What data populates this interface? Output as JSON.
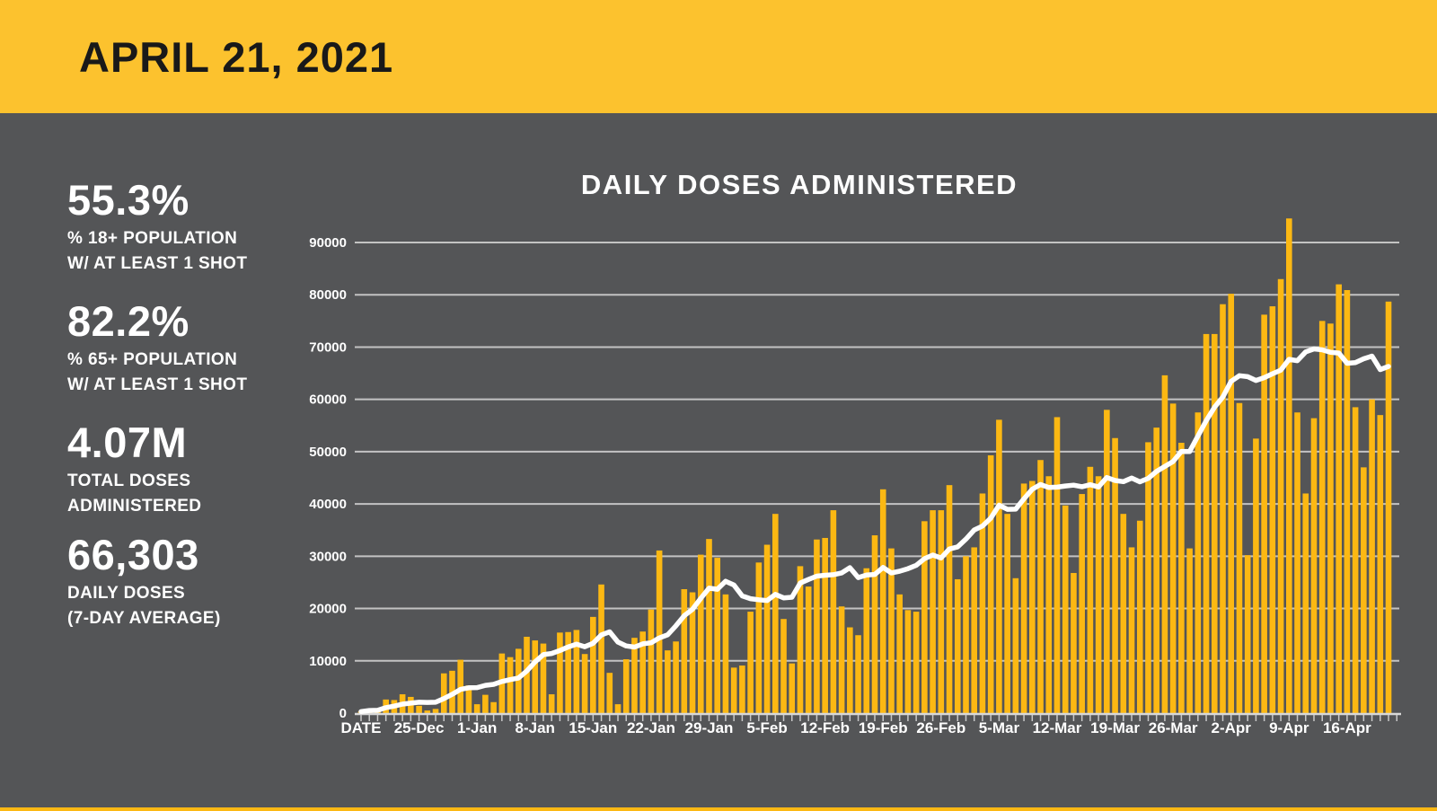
{
  "header": {
    "title": "APRIL 21, 2021"
  },
  "stats": [
    {
      "value": "55.3%",
      "label_line1": "% 18+ POPULATION",
      "label_line2": "W/ AT LEAST 1 SHOT"
    },
    {
      "value": "82.2%",
      "label_line1": "% 65+ POPULATION",
      "label_line2": "W/ AT LEAST 1 SHOT"
    },
    {
      "value": "4.07M",
      "label_line1": "TOTAL DOSES",
      "label_line2": "ADMINISTERED"
    },
    {
      "value": "66,303",
      "label_line1": "DAILY DOSES",
      "label_line2": "(7-DAY AVERAGE)"
    }
  ],
  "colors": {
    "background": "#545557",
    "header_yellow": "#FCC22E",
    "bar_yellow": "#FCB813",
    "text_white": "#FFFFFF",
    "header_text": "#191919",
    "gridline": "#C3C3C3",
    "axis_line": "#D8D8D8",
    "tick": "#C8C8C8",
    "avg_line": "#FFFFFF"
  },
  "chart_data": {
    "type": "bar",
    "title": "DAILY DOSES ADMINISTERED",
    "xlabel": "",
    "ylabel": "",
    "x_axis_first_label": "DATE",
    "x_tick_labels": [
      "25-Dec",
      "1-Jan",
      "8-Jan",
      "15-Jan",
      "22-Jan",
      "29-Jan",
      "5-Feb",
      "12-Feb",
      "19-Feb",
      "26-Feb",
      "5-Mar",
      "12-Mar",
      "19-Mar",
      "26-Mar",
      "2-Apr",
      "9-Apr",
      "16-Apr"
    ],
    "x_tick_label_every_n_bars": 7,
    "x_tick_label_start_index": 7,
    "y_ticks": [
      0,
      10000,
      20000,
      30000,
      40000,
      50000,
      60000,
      70000,
      80000,
      90000
    ],
    "ylim": [
      0,
      97000
    ],
    "grid": "horizontal",
    "legend": "none",
    "series": [
      {
        "name": "Daily doses administered",
        "type": "bar"
      },
      {
        "name": "7-day average",
        "type": "line",
        "derived": "trailing-7-day-mean",
        "end_value_shown_in_stats": "66,303"
      }
    ],
    "dates": [
      "18-Dec",
      "19-Dec",
      "20-Dec",
      "21-Dec",
      "22-Dec",
      "23-Dec",
      "24-Dec",
      "25-Dec",
      "26-Dec",
      "27-Dec",
      "28-Dec",
      "29-Dec",
      "30-Dec",
      "31-Dec",
      "1-Jan",
      "2-Jan",
      "3-Jan",
      "4-Jan",
      "5-Jan",
      "6-Jan",
      "7-Jan",
      "8-Jan",
      "9-Jan",
      "10-Jan",
      "11-Jan",
      "12-Jan",
      "13-Jan",
      "14-Jan",
      "15-Jan",
      "16-Jan",
      "17-Jan",
      "18-Jan",
      "19-Jan",
      "20-Jan",
      "21-Jan",
      "22-Jan",
      "23-Jan",
      "24-Jan",
      "25-Jan",
      "26-Jan",
      "27-Jan",
      "28-Jan",
      "29-Jan",
      "30-Jan",
      "31-Jan",
      "1-Feb",
      "2-Feb",
      "3-Feb",
      "4-Feb",
      "5-Feb",
      "6-Feb",
      "7-Feb",
      "8-Feb",
      "9-Feb",
      "10-Feb",
      "11-Feb",
      "12-Feb",
      "13-Feb",
      "14-Feb",
      "15-Feb",
      "16-Feb",
      "17-Feb",
      "18-Feb",
      "19-Feb",
      "20-Feb",
      "21-Feb",
      "22-Feb",
      "23-Feb",
      "24-Feb",
      "25-Feb",
      "26-Feb",
      "27-Feb",
      "28-Feb",
      "1-Mar",
      "2-Mar",
      "3-Mar",
      "4-Mar",
      "5-Mar",
      "6-Mar",
      "7-Mar",
      "8-Mar",
      "9-Mar",
      "10-Mar",
      "11-Mar",
      "12-Mar",
      "13-Mar",
      "14-Mar",
      "15-Mar",
      "16-Mar",
      "17-Mar",
      "18-Mar",
      "19-Mar",
      "20-Mar",
      "21-Mar",
      "22-Mar",
      "23-Mar",
      "24-Mar",
      "25-Mar",
      "26-Mar",
      "27-Mar",
      "28-Mar",
      "29-Mar",
      "30-Mar",
      "31-Mar",
      "1-Apr",
      "2-Apr",
      "3-Apr",
      "4-Apr",
      "5-Apr",
      "6-Apr",
      "7-Apr",
      "8-Apr",
      "9-Apr",
      "10-Apr",
      "11-Apr",
      "12-Apr",
      "13-Apr",
      "14-Apr",
      "15-Apr",
      "16-Apr",
      "17-Apr",
      "18-Apr",
      "19-Apr",
      "20-Apr",
      "21-Apr"
    ],
    "values": [
      300,
      700,
      600,
      2600,
      2500,
      3600,
      3100,
      1400,
      500,
      800,
      7600,
      8100,
      10200,
      5300,
      1700,
      3500,
      2100,
      11400,
      10700,
      12300,
      14600,
      13900,
      13300,
      3600,
      15400,
      15500,
      15900,
      11300,
      18400,
      24600,
      7700,
      1700,
      10300,
      14400,
      15600,
      19800,
      31100,
      12000,
      13700,
      23700,
      23100,
      30300,
      33300,
      29700,
      22700,
      8700,
      9100,
      19400,
      28800,
      32200,
      38100,
      18000,
      9500,
      28100,
      24200,
      33200,
      33500,
      38800,
      20400,
      16400,
      14900,
      27700,
      34000,
      42800,
      31500,
      22700,
      19700,
      19400,
      36700,
      38800,
      38800,
      43600,
      25600,
      30000,
      31700,
      42000,
      49300,
      56100,
      38100,
      25800,
      43900,
      44400,
      48400,
      45300,
      56600,
      39700,
      26800,
      41900,
      47100,
      45300,
      58000,
      52600,
      38100,
      31700,
      36800,
      51800,
      54600,
      64600,
      59200,
      51700,
      31500,
      57500,
      72500,
      72500,
      78200,
      80200,
      59300,
      30200,
      52500,
      76200,
      77800,
      83000,
      94600,
      57500,
      42000,
      56400,
      75000,
      74500,
      82000,
      80900,
      58500,
      47000,
      60000,
      57000,
      78700
    ]
  }
}
